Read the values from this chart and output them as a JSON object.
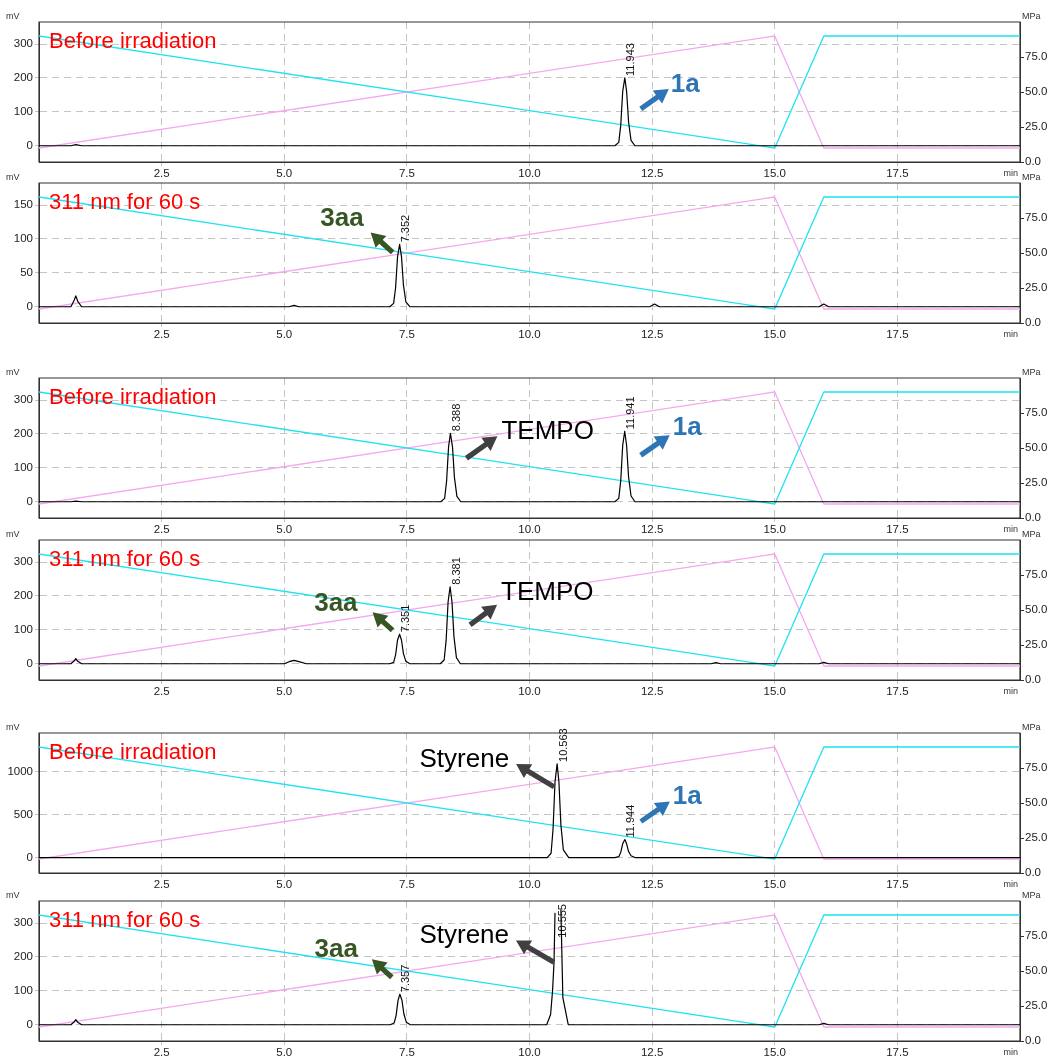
{
  "chart_data": [
    {
      "type": "line",
      "title": "Before irradiation",
      "xlabel": "min",
      "ylabel": "mV",
      "y2label": "MPa",
      "xlim": [
        0,
        20
      ],
      "xticks": [
        2.5,
        {
          "value": 5,
          "label": "5.0"
        },
        7.5,
        {
          "value": 10,
          "label": "10.0"
        },
        12.5,
        {
          "value": 15,
          "label": "15.0"
        },
        17.5
      ],
      "ylim": [
        -48,
        365
      ],
      "yticks": [
        0,
        100,
        200,
        300
      ],
      "y2lim": [
        0,
        100
      ],
      "y2ticks": [
        {
          "value": 0,
          "label": "0.0"
        },
        {
          "value": 25,
          "label": "25.0"
        },
        {
          "value": 50,
          "label": "50.0"
        },
        {
          "value": 75,
          "label": "75.0"
        }
      ],
      "grid": true,
      "marker": "none",
      "line_style": "solid",
      "series": [
        {
          "color": "#1ee3f0",
          "axis": "y2",
          "x": [
            0,
            15,
            16,
            20
          ],
          "values": [
            90,
            10,
            90,
            90
          ]
        },
        {
          "color": "#f5a8f0",
          "axis": "y2",
          "x": [
            0,
            15,
            16,
            20
          ],
          "values": [
            10,
            90,
            10,
            10
          ]
        },
        {
          "color": "#000000",
          "axis": "y",
          "x": [
            0,
            0.65,
            0.75,
            0.87,
            11.74,
            11.82,
            11.86,
            11.9,
            11.943,
            11.98,
            12.02,
            12.07,
            12.15,
            20
          ],
          "values": [
            0,
            0,
            3,
            0,
            0,
            10,
            60,
            160,
            200,
            160,
            70,
            16,
            0,
            0
          ]
        }
      ],
      "annotations": [
        {
          "text": "1a",
          "x": 11.943,
          "y": 200
        },
        {
          "text": "11.943",
          "x": 11.943,
          "y": 200
        }
      ]
    },
    {
      "type": "line",
      "title": "311 nm for 60 s",
      "xlabel": "min",
      "ylabel": "mV",
      "y2label": "MPa",
      "xlim": [
        0,
        20
      ],
      "xticks": [
        2.5,
        {
          "value": 5,
          "label": "5.0"
        },
        7.5,
        {
          "value": 10,
          "label": "10.0"
        },
        12.5,
        {
          "value": 15,
          "label": "15.0"
        },
        17.5
      ],
      "ylim": [
        -24,
        182.5
      ],
      "yticks": [
        0,
        50,
        100,
        150
      ],
      "y2lim": [
        0,
        100
      ],
      "y2ticks": [
        {
          "value": 0,
          "label": "0.0"
        },
        {
          "value": 25,
          "label": "25.0"
        },
        {
          "value": 50,
          "label": "50.0"
        },
        {
          "value": 75,
          "label": "75.0"
        }
      ],
      "grid": true,
      "marker": "none",
      "line_style": "solid",
      "series": [
        {
          "color": "#1ee3f0",
          "axis": "y2",
          "x": [
            0,
            15,
            16,
            20
          ],
          "values": [
            90,
            10,
            90,
            90
          ]
        },
        {
          "color": "#f5a8f0",
          "axis": "y2",
          "x": [
            0,
            15,
            16,
            20
          ],
          "values": [
            10,
            90,
            10,
            10
          ]
        },
        {
          "color": "#000000",
          "axis": "y",
          "x": [
            0,
            0.65,
            0.72,
            0.75,
            0.79,
            0.87,
            5.1,
            5.2,
            5.3,
            7.15,
            7.23,
            7.27,
            7.31,
            7.352,
            7.39,
            7.43,
            7.48,
            7.56,
            12.45,
            12.55,
            12.65,
            15.9,
            16,
            16.1,
            20
          ],
          "values": [
            0,
            0,
            10,
            16,
            8,
            0,
            0,
            2,
            0,
            0,
            5,
            28,
            74,
            92,
            74,
            32,
            7,
            0,
            0,
            4,
            0,
            0,
            4,
            0,
            0
          ]
        }
      ],
      "annotations": [
        {
          "text": "3aa",
          "x": 7.352,
          "y": 92
        },
        {
          "text": "7.352",
          "x": 7.352,
          "y": 92
        }
      ]
    },
    {
      "type": "line",
      "title": "Before irradiation",
      "xlabel": "min",
      "ylabel": "mV",
      "y2label": "MPa",
      "xlim": [
        0,
        20
      ],
      "xticks": [
        2.5,
        {
          "value": 5,
          "label": "5.0"
        },
        7.5,
        {
          "value": 10,
          "label": "10.0"
        },
        12.5,
        {
          "value": 15,
          "label": "15.0"
        },
        17.5
      ],
      "ylim": [
        -48,
        365
      ],
      "yticks": [
        0,
        100,
        200,
        300
      ],
      "y2lim": [
        0,
        100
      ],
      "y2ticks": [
        {
          "value": 0,
          "label": "0.0"
        },
        {
          "value": 25,
          "label": "25.0"
        },
        {
          "value": 50,
          "label": "50.0"
        },
        {
          "value": 75,
          "label": "75.0"
        }
      ],
      "grid": true,
      "marker": "none",
      "line_style": "solid",
      "series": [
        {
          "color": "#1ee3f0",
          "axis": "y2",
          "x": [
            0,
            15,
            16,
            20
          ],
          "values": [
            90,
            10,
            90,
            90
          ]
        },
        {
          "color": "#f5a8f0",
          "axis": "y2",
          "x": [
            0,
            15,
            16,
            20
          ],
          "values": [
            10,
            90,
            10,
            10
          ]
        },
        {
          "color": "#000000",
          "axis": "y",
          "x": [
            0,
            0.65,
            0.75,
            0.87,
            8.19,
            8.27,
            8.31,
            8.35,
            8.388,
            8.43,
            8.47,
            8.52,
            8.6,
            11.74,
            11.82,
            11.86,
            11.9,
            11.941,
            11.98,
            12.02,
            12.07,
            12.15,
            20
          ],
          "values": [
            0,
            0,
            2,
            0,
            0,
            10,
            61,
            162,
            202,
            162,
            71,
            16,
            0,
            0,
            10,
            62,
            166,
            208,
            166,
            73,
            17,
            0,
            0
          ]
        }
      ],
      "annotations": [
        {
          "text": "TEMPO",
          "x": 8.388,
          "y": 202
        },
        {
          "text": "1a",
          "x": 11.941,
          "y": 208
        },
        {
          "text": "8.388",
          "x": 8.388,
          "y": 202
        },
        {
          "text": "11.941",
          "x": 11.941,
          "y": 208
        }
      ]
    },
    {
      "type": "line",
      "title": "311 nm for 60 s",
      "xlabel": "min",
      "ylabel": "mV",
      "y2label": "MPa",
      "xlim": [
        0,
        20
      ],
      "xticks": [
        2.5,
        {
          "value": 5,
          "label": "5.0"
        },
        7.5,
        {
          "value": 10,
          "label": "10.0"
        },
        12.5,
        {
          "value": 15,
          "label": "15.0"
        },
        17.5
      ],
      "ylim": [
        -48,
        365
      ],
      "yticks": [
        0,
        100,
        200,
        300
      ],
      "y2lim": [
        0,
        100
      ],
      "y2ticks": [
        {
          "value": 0,
          "label": "0.0"
        },
        {
          "value": 25,
          "label": "25.0"
        },
        {
          "value": 50,
          "label": "50.0"
        },
        {
          "value": 75,
          "label": "75.0"
        }
      ],
      "grid": true,
      "marker": "none",
      "line_style": "solid",
      "series": [
        {
          "color": "#1ee3f0",
          "axis": "y2",
          "x": [
            0,
            15,
            16,
            20
          ],
          "values": [
            90,
            10,
            90,
            90
          ]
        },
        {
          "color": "#f5a8f0",
          "axis": "y2",
          "x": [
            0,
            15,
            16,
            20
          ],
          "values": [
            10,
            90,
            10,
            10
          ]
        },
        {
          "color": "#000000",
          "axis": "y",
          "x": [
            0,
            0.65,
            0.72,
            0.75,
            0.79,
            0.87,
            5,
            5.1,
            5.2,
            5.3,
            5.45,
            7.15,
            7.23,
            7.27,
            7.31,
            7.351,
            7.39,
            7.43,
            7.48,
            7.56,
            8.18,
            8.26,
            8.3,
            8.34,
            8.381,
            8.42,
            8.46,
            8.51,
            8.59,
            13.7,
            13.8,
            13.9,
            15.9,
            16,
            16.1,
            20
          ],
          "values": [
            0,
            0,
            9,
            15,
            7,
            0,
            0,
            6,
            10,
            6,
            0,
            0,
            4,
            26,
            70,
            87,
            70,
            30,
            7,
            0,
            0,
            11,
            68,
            182,
            227,
            182,
            80,
            18,
            0,
            0,
            3,
            0,
            0,
            4,
            0,
            0
          ]
        }
      ],
      "annotations": [
        {
          "text": "3aa",
          "x": 7.351,
          "y": 87
        },
        {
          "text": "TEMPO",
          "x": 8.381,
          "y": 227
        },
        {
          "text": "7.351",
          "x": 7.351,
          "y": 87
        },
        {
          "text": "8.381",
          "x": 8.381,
          "y": 227
        }
      ]
    },
    {
      "type": "line",
      "title": "Before irradiation",
      "xlabel": "min",
      "ylabel": "mV",
      "y2label": "MPa",
      "xlim": [
        0,
        20
      ],
      "xticks": [
        2.5,
        {
          "value": 5,
          "label": "5.0"
        },
        7.5,
        {
          "value": 10,
          "label": "10.0"
        },
        12.5,
        {
          "value": 15,
          "label": "15.0"
        },
        17.5
      ],
      "ylim": [
        -180,
        1450
      ],
      "yticks": [
        0,
        500,
        1000
      ],
      "y2lim": [
        0,
        100
      ],
      "y2ticks": [
        {
          "value": 0,
          "label": "0.0"
        },
        {
          "value": 25,
          "label": "25.0"
        },
        {
          "value": 50,
          "label": "50.0"
        },
        {
          "value": 75,
          "label": "75.0"
        }
      ],
      "grid": true,
      "marker": "none",
      "line_style": "solid",
      "series": [
        {
          "color": "#1ee3f0",
          "axis": "y2",
          "x": [
            0,
            15,
            16,
            20
          ],
          "values": [
            90,
            10,
            90,
            90
          ]
        },
        {
          "color": "#f5a8f0",
          "axis": "y2",
          "x": [
            0,
            15,
            16,
            20
          ],
          "values": [
            10,
            90,
            10,
            10
          ]
        },
        {
          "color": "#000000",
          "axis": "y",
          "x": [
            0,
            10.36,
            10.44,
            10.48,
            10.52,
            10.563,
            10.6,
            10.64,
            10.69,
            10.8,
            11.74,
            11.82,
            11.86,
            11.9,
            11.944,
            11.98,
            12.02,
            12.07,
            12.15,
            20
          ],
          "values": [
            0,
            0,
            50,
            330,
            880,
            1090,
            880,
            380,
            90,
            0,
            0,
            10,
            60,
            160,
            210,
            160,
            70,
            20,
            0,
            0
          ]
        }
      ],
      "annotations": [
        {
          "text": "Styrene",
          "x": 10.563,
          "y": 1090
        },
        {
          "text": "1a",
          "x": 11.944,
          "y": 210
        },
        {
          "text": "10.563",
          "x": 10.563,
          "y": 1090
        },
        {
          "text": "11.944",
          "x": 11.944,
          "y": 210
        }
      ]
    },
    {
      "type": "line",
      "title": "311 nm for 60 s",
      "xlabel": "min",
      "ylabel": "mV",
      "y2label": "MPa",
      "xlim": [
        0,
        20
      ],
      "xticks": [
        2.5,
        {
          "value": 5,
          "label": "5.0"
        },
        7.5,
        {
          "value": 10,
          "label": "10.0"
        },
        12.5,
        {
          "value": 15,
          "label": "15.0"
        },
        17.5
      ],
      "ylim": [
        -48,
        365
      ],
      "yticks": [
        0,
        100,
        200,
        300
      ],
      "y2lim": [
        0,
        100
      ],
      "y2ticks": [
        {
          "value": 0,
          "label": "0.0"
        },
        {
          "value": 25,
          "label": "25.0"
        },
        {
          "value": 50,
          "label": "50.0"
        },
        {
          "value": 75,
          "label": "75.0"
        }
      ],
      "grid": true,
      "marker": "none",
      "line_style": "solid",
      "series": [
        {
          "color": "#1ee3f0",
          "axis": "y2",
          "x": [
            0,
            15,
            16,
            20
          ],
          "values": [
            90,
            10,
            90,
            90
          ]
        },
        {
          "color": "#f5a8f0",
          "axis": "y2",
          "x": [
            0,
            15,
            16,
            20
          ],
          "values": [
            10,
            90,
            10,
            10
          ]
        },
        {
          "color": "#000000",
          "axis": "y",
          "x": [
            0,
            0.65,
            0.72,
            0.75,
            0.79,
            0.87,
            7.16,
            7.24,
            7.28,
            7.32,
            7.357,
            7.4,
            7.44,
            7.49,
            7.57,
            10.35,
            10.43,
            10.47,
            10.5,
            10.52,
            10.555,
            10.64,
            10.68,
            10.79,
            15.9,
            16,
            16.1,
            20
          ],
          "values": [
            0,
            0,
            9,
            15,
            7,
            0,
            0,
            5,
            27,
            72,
            90,
            72,
            31,
            7,
            0,
            0,
            30,
            100,
            184,
            330,
            null,
            340,
            80,
            0,
            0,
            4,
            0,
            0
          ]
        }
      ],
      "annotations": [
        {
          "text": "3aa",
          "x": 7.357,
          "y": 90
        },
        {
          "text": "Styrene",
          "x": 10.5,
          "y": 184
        },
        {
          "text": "7.357",
          "x": 7.357,
          "y": 90
        },
        "10.555"
      ]
    }
  ]
}
